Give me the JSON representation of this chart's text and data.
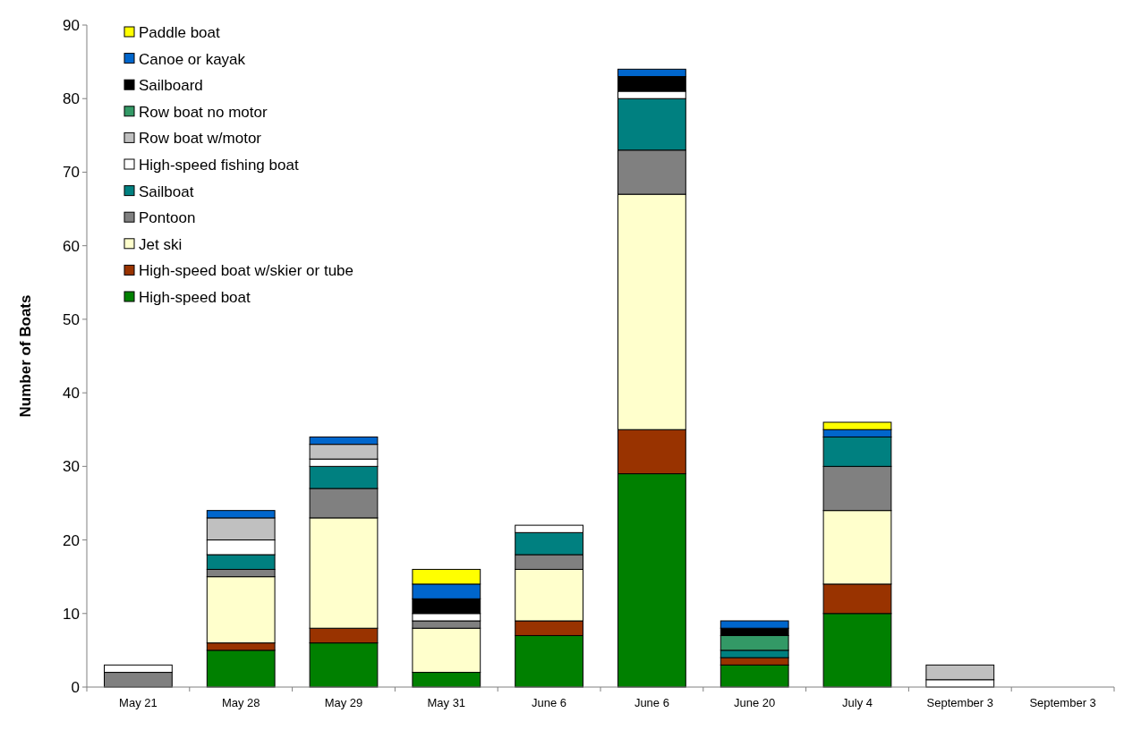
{
  "chart_data": {
    "type": "bar",
    "stacked": true,
    "ylabel": "Number of Boats",
    "categories": [
      "May 21",
      "May 28",
      "May 29",
      "May 31",
      "June 6",
      "June 6",
      "June 20",
      "July 4",
      "September 3",
      "September 3"
    ],
    "series": [
      {
        "name": "High-speed boat",
        "color": "#008000",
        "values": [
          0,
          5,
          6,
          2,
          7,
          29,
          3,
          10,
          0,
          0
        ]
      },
      {
        "name": "High-speed boat w/skier or tube",
        "color": "#993300",
        "values": [
          0,
          1,
          2,
          0,
          2,
          6,
          1,
          4,
          0,
          0
        ]
      },
      {
        "name": "Jet ski",
        "color": "#ffffcc",
        "values": [
          0,
          9,
          15,
          6,
          7,
          32,
          0,
          10,
          0,
          0
        ]
      },
      {
        "name": "Pontoon",
        "color": "#808080",
        "values": [
          2,
          1,
          4,
          1,
          2,
          6,
          0,
          6,
          0,
          0
        ]
      },
      {
        "name": "Sailboat",
        "color": "#008080",
        "values": [
          0,
          2,
          3,
          0,
          3,
          7,
          1,
          4,
          0,
          0
        ]
      },
      {
        "name": "High-speed fishing boat",
        "color": "#ffffff",
        "values": [
          1,
          2,
          1,
          1,
          1,
          1,
          0,
          0,
          1,
          0
        ]
      },
      {
        "name": "Row boat w/motor",
        "color": "#c0c0c0",
        "values": [
          0,
          3,
          2,
          0,
          0,
          0,
          0,
          0,
          2,
          0
        ]
      },
      {
        "name": "Row boat no motor",
        "color": "#339966",
        "values": [
          0,
          0,
          0,
          0,
          0,
          0,
          2,
          0,
          0,
          0
        ]
      },
      {
        "name": "Sailboard",
        "color": "#000000",
        "values": [
          0,
          0,
          0,
          2,
          0,
          2,
          1,
          0,
          0,
          0
        ]
      },
      {
        "name": "Canoe or kayak",
        "color": "#0066cc",
        "values": [
          0,
          1,
          1,
          2,
          0,
          1,
          1,
          1,
          0,
          0
        ]
      },
      {
        "name": "Paddle boat",
        "color": "#ffff00",
        "values": [
          0,
          0,
          0,
          2,
          0,
          0,
          0,
          1,
          0,
          0
        ]
      }
    ],
    "ylim": [
      0,
      90
    ],
    "yticks": [
      0,
      10,
      20,
      30,
      40,
      50,
      60,
      70,
      80,
      90
    ],
    "legend": "top left",
    "grid": false
  }
}
